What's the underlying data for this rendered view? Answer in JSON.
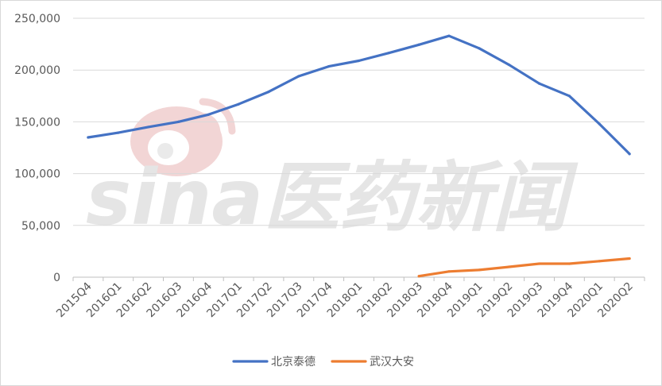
{
  "chart_data": {
    "type": "line",
    "title": "",
    "xlabel": "",
    "ylabel": "",
    "ylim": [
      0,
      250000
    ],
    "yticks": [
      0,
      50000,
      100000,
      150000,
      200000,
      250000
    ],
    "ytick_labels": [
      "0",
      "50,000",
      "100,000",
      "150,000",
      "200,000",
      "250,000"
    ],
    "grid": "horizontal",
    "legend_position": "bottom",
    "categories": [
      "2015Q4",
      "2016Q1",
      "2016Q2",
      "2016Q3",
      "2016Q4",
      "2017Q1",
      "2017Q2",
      "2017Q3",
      "2017Q4",
      "2018Q1",
      "2018Q2",
      "2018Q3",
      "2018Q4",
      "2019Q1",
      "2019Q2",
      "2019Q3",
      "2019Q4",
      "2020Q1",
      "2020Q2"
    ],
    "series": [
      {
        "name": "北京泰德",
        "color": "#4472c4",
        "values": [
          135000,
          139500,
          145000,
          150000,
          157000,
          167000,
          179000,
          194000,
          203500,
          209000,
          216500,
          224500,
          233000,
          221000,
          205000,
          187000,
          175000,
          148000,
          119000
        ]
      },
      {
        "name": "武汉大安",
        "color": "#ed7d31",
        "values": [
          null,
          null,
          null,
          null,
          null,
          null,
          null,
          null,
          null,
          null,
          null,
          1000,
          5500,
          7000,
          10000,
          13000,
          13000,
          15500,
          18000
        ]
      }
    ]
  },
  "watermark": {
    "text": "sina医药新闻",
    "icon": "sina-weibo-eye-logo",
    "color": "#cccccc"
  }
}
